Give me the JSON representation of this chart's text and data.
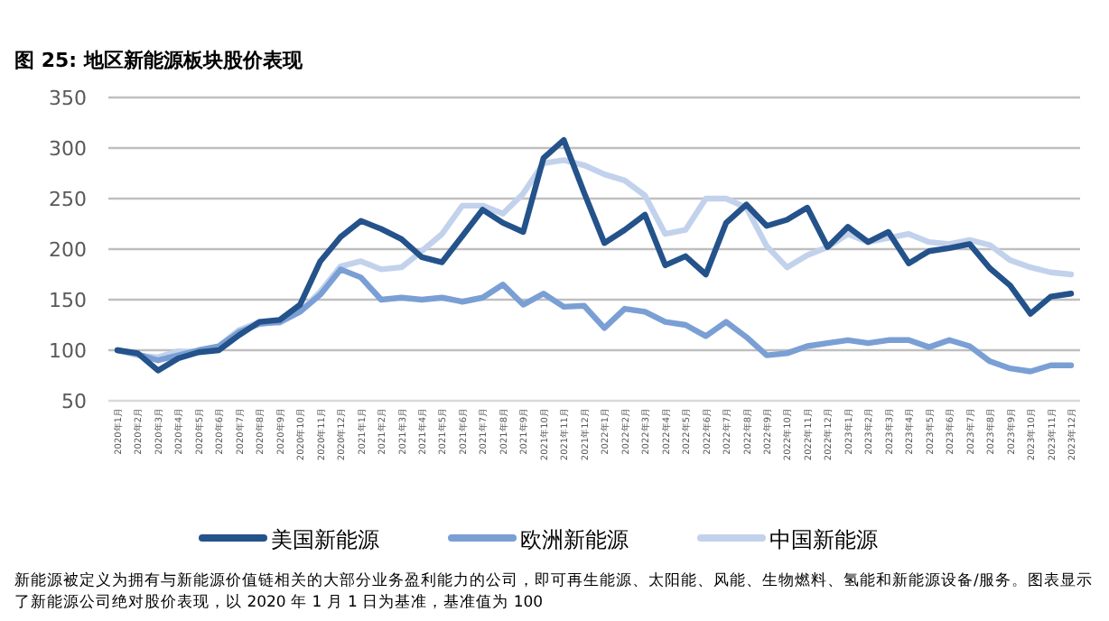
{
  "chart_data": {
    "type": "line",
    "title": "图 25:  地区新能源板块股价表现",
    "categories": [
      "2020年1月",
      "2020年2月",
      "2020年3月",
      "2020年4月",
      "2020年5月",
      "2020年6月",
      "2020年7月",
      "2020年8月",
      "2020年9月",
      "2020年10月",
      "2020年11月",
      "2020年12月",
      "2021年1月",
      "2021年2月",
      "2021年3月",
      "2021年4月",
      "2021年5月",
      "2021年6月",
      "2021年7月",
      "2021年8月",
      "2021年9月",
      "2021年10月",
      "2021年11月",
      "2021年12月",
      "2022年1月",
      "2022年2月",
      "2022年3月",
      "2022年4月",
      "2022年5月",
      "2022年6月",
      "2022年7月",
      "2022年8月",
      "2022年9月",
      "2022年10月",
      "2022年11月",
      "2022年12月",
      "2023年1月",
      "2023年2月",
      "2023年3月",
      "2023年4月",
      "2023年5月",
      "2023年6月",
      "2023年7月",
      "2023年8月",
      "2023年9月",
      "2023年10月",
      "2023年11月",
      "2023年12月"
    ],
    "series": [
      {
        "name": "美国新能源",
        "color": "#24528a",
        "values": [
          100,
          97,
          80,
          92,
          98,
          100,
          115,
          128,
          130,
          145,
          188,
          212,
          228,
          220,
          210,
          192,
          187,
          213,
          239,
          226,
          217,
          290,
          308,
          256,
          206,
          219,
          234,
          184,
          193,
          175,
          226,
          244,
          223,
          229,
          241,
          202,
          222,
          207,
          217,
          186,
          198,
          201,
          205,
          181,
          164,
          136,
          153,
          156
        ]
      },
      {
        "name": "欧洲新能源",
        "color": "#7a9fd4",
        "values": [
          100,
          96,
          90,
          95,
          100,
          104,
          118,
          126,
          128,
          138,
          155,
          180,
          172,
          150,
          152,
          150,
          152,
          148,
          152,
          165,
          145,
          156,
          143,
          144,
          122,
          141,
          138,
          128,
          125,
          114,
          128,
          113,
          95,
          97,
          104,
          107,
          110,
          107,
          110,
          110,
          103,
          110,
          104,
          89,
          82,
          79,
          85,
          85
        ]
      },
      {
        "name": "中国新能源",
        "color": "#c2d2ec",
        "values": [
          100,
          95,
          93,
          99,
          98,
          104,
          120,
          128,
          127,
          138,
          158,
          183,
          188,
          180,
          182,
          198,
          215,
          243,
          243,
          235,
          255,
          285,
          288,
          283,
          274,
          268,
          253,
          215,
          219,
          250,
          250,
          241,
          203,
          182,
          194,
          202,
          215,
          207,
          211,
          215,
          207,
          205,
          209,
          204,
          189,
          182,
          177,
          175
        ]
      }
    ],
    "ylim": [
      50,
      350
    ],
    "yticks": [
      50,
      100,
      150,
      200,
      250,
      300,
      350
    ],
    "grid": "y",
    "legend": "bottom",
    "marker": "none",
    "line_style": "solid",
    "annotations": [
      "新能源被定义为拥有与新能源价值链相关的大部分业务盈利能力的公司，即可再生能源、太阳能、风能、生物燃料、氢能和新能源设备/服务。图表显示了新能源公司绝对股价表现，以 2020 年 1 月 1 日为基准，基准值为 100"
    ]
  }
}
